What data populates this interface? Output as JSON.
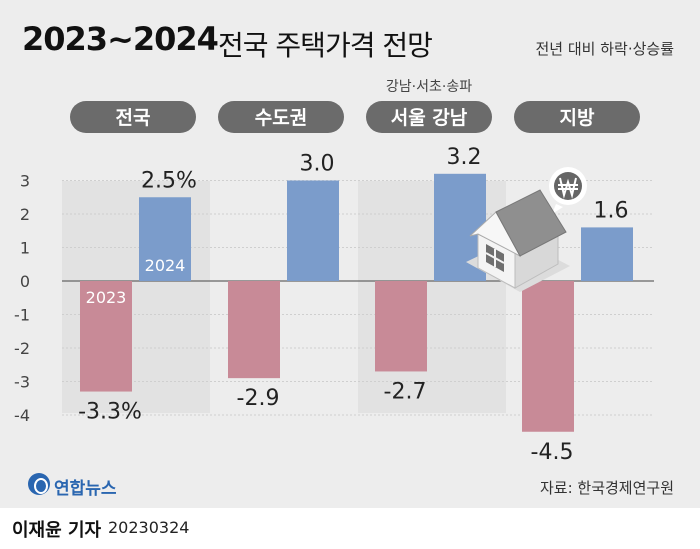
{
  "title": {
    "main": "2023~2024",
    "sub": "전국 주택가격 전망"
  },
  "note": "전년 대비 하락·상승률",
  "source": "자료: 한국경제연구원",
  "logo": "연합뉴스",
  "reporter": "이재윤 기자",
  "date": "20230324",
  "colors": {
    "y2023": "#c88a97",
    "y2024": "#7b9ccb",
    "pill": "#6b6b6b",
    "band": "#e2e2e2",
    "bg": "#ededed"
  },
  "chart_data": {
    "type": "bar",
    "title": "2023~2024 전국 주택가격 전망",
    "ylabel": "전년 대비 하락·상승률 (%)",
    "ylim": [
      -4,
      3
    ],
    "yticks": [
      3,
      2,
      1,
      0,
      -1,
      -2,
      -3,
      -4
    ],
    "ytick_labels": [
      "3",
      "2",
      "1",
      "0",
      "-1",
      "-2",
      "-3",
      "-4"
    ],
    "categories": [
      "전국",
      "수도권",
      "서울 강남",
      "지방"
    ],
    "category_subtitles": [
      "",
      "",
      "강남·서초·송파",
      ""
    ],
    "series": [
      {
        "name": "2023",
        "values": [
          -3.3,
          -2.9,
          -2.7,
          -4.5
        ],
        "labels": [
          "-3.3%",
          "-2.9",
          "-2.7",
          "-4.5"
        ]
      },
      {
        "name": "2024",
        "values": [
          2.5,
          3.0,
          3.2,
          1.6
        ],
        "labels": [
          "2.5%",
          "3.0",
          "3.2",
          "1.6"
        ]
      }
    ],
    "icons": [
      "house-icon",
      "won-coin-icon"
    ]
  }
}
